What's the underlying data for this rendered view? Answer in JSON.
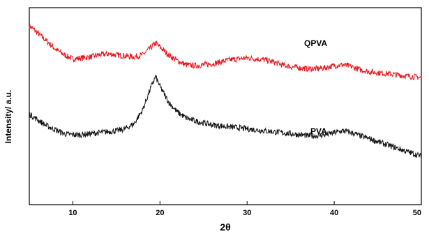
{
  "chart_data": {
    "type": "line",
    "xlabel": "2θ",
    "ylabel": "Intensity/ a.u.",
    "xlim": [
      5,
      50
    ],
    "xticks": [
      10,
      20,
      30,
      40,
      50
    ],
    "y_ticks_shown": false,
    "grid": false,
    "legend": "inline labels",
    "series": [
      {
        "name": "QPVA",
        "color": "#e8141c",
        "points": [
          [
            5,
            0.91
          ],
          [
            6,
            0.87
          ],
          [
            7,
            0.83
          ],
          [
            8,
            0.79
          ],
          [
            9,
            0.76
          ],
          [
            10,
            0.74
          ],
          [
            11,
            0.745
          ],
          [
            12,
            0.75
          ],
          [
            13,
            0.76
          ],
          [
            14,
            0.765
          ],
          [
            15,
            0.76
          ],
          [
            16,
            0.755
          ],
          [
            17,
            0.75
          ],
          [
            18,
            0.76
          ],
          [
            19,
            0.8
          ],
          [
            19.5,
            0.82
          ],
          [
            20,
            0.8
          ],
          [
            21,
            0.76
          ],
          [
            22,
            0.73
          ],
          [
            23,
            0.71
          ],
          [
            24,
            0.705
          ],
          [
            25,
            0.71
          ],
          [
            26,
            0.715
          ],
          [
            27,
            0.725
          ],
          [
            28,
            0.735
          ],
          [
            29,
            0.74
          ],
          [
            30,
            0.745
          ],
          [
            31,
            0.74
          ],
          [
            32,
            0.735
          ],
          [
            33,
            0.725
          ],
          [
            34,
            0.71
          ],
          [
            35,
            0.7
          ],
          [
            36,
            0.695
          ],
          [
            37,
            0.69
          ],
          [
            38,
            0.69
          ],
          [
            39,
            0.695
          ],
          [
            40,
            0.705
          ],
          [
            41,
            0.71
          ],
          [
            42,
            0.7
          ],
          [
            43,
            0.685
          ],
          [
            44,
            0.675
          ],
          [
            45,
            0.67
          ],
          [
            46,
            0.665
          ],
          [
            47,
            0.66
          ],
          [
            48,
            0.655
          ],
          [
            49,
            0.65
          ],
          [
            50,
            0.645
          ]
        ]
      },
      {
        "name": "PVA",
        "color": "#111111",
        "points": [
          [
            5,
            0.46
          ],
          [
            6,
            0.43
          ],
          [
            7,
            0.4
          ],
          [
            8,
            0.38
          ],
          [
            9,
            0.36
          ],
          [
            10,
            0.355
          ],
          [
            11,
            0.355
          ],
          [
            12,
            0.36
          ],
          [
            13,
            0.365
          ],
          [
            14,
            0.37
          ],
          [
            15,
            0.375
          ],
          [
            16,
            0.385
          ],
          [
            17,
            0.41
          ],
          [
            18,
            0.48
          ],
          [
            19,
            0.6
          ],
          [
            19.5,
            0.65
          ],
          [
            20,
            0.6
          ],
          [
            21,
            0.52
          ],
          [
            22,
            0.47
          ],
          [
            23,
            0.44
          ],
          [
            24,
            0.425
          ],
          [
            25,
            0.415
          ],
          [
            26,
            0.405
          ],
          [
            27,
            0.4
          ],
          [
            28,
            0.395
          ],
          [
            29,
            0.39
          ],
          [
            30,
            0.385
          ],
          [
            31,
            0.38
          ],
          [
            32,
            0.375
          ],
          [
            33,
            0.37
          ],
          [
            34,
            0.365
          ],
          [
            35,
            0.36
          ],
          [
            36,
            0.355
          ],
          [
            37,
            0.35
          ],
          [
            38,
            0.35
          ],
          [
            39,
            0.355
          ],
          [
            40,
            0.365
          ],
          [
            41,
            0.375
          ],
          [
            42,
            0.365
          ],
          [
            43,
            0.35
          ],
          [
            44,
            0.335
          ],
          [
            45,
            0.32
          ],
          [
            46,
            0.305
          ],
          [
            47,
            0.29
          ],
          [
            48,
            0.275
          ],
          [
            49,
            0.26
          ],
          [
            50,
            0.245
          ]
        ]
      }
    ]
  }
}
